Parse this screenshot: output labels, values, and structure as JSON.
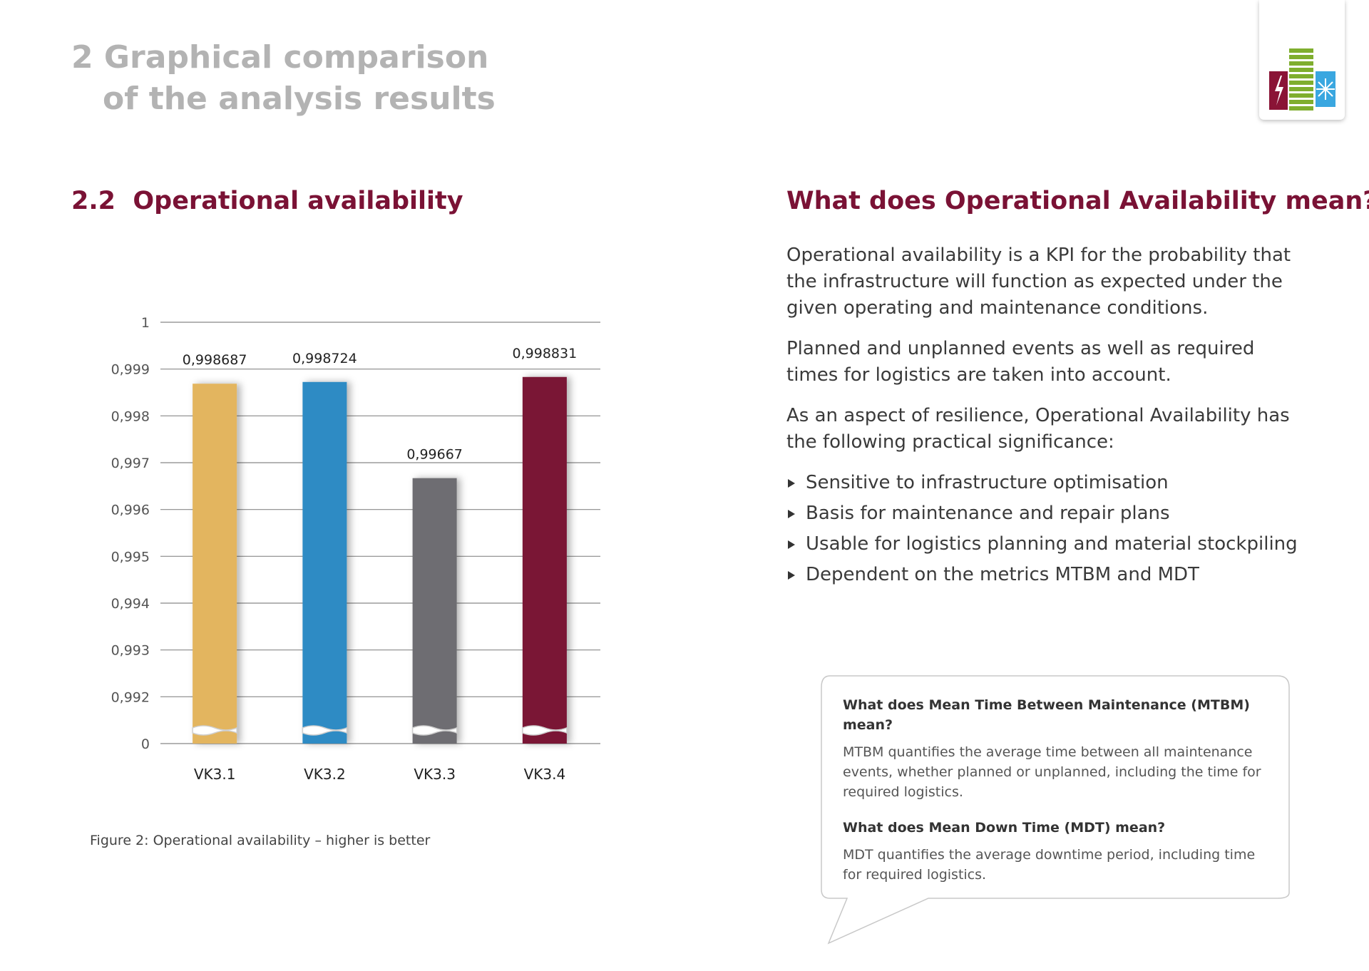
{
  "header": {
    "title_line1": "2 Graphical comparison",
    "title_line2": "of the analysis results"
  },
  "section": {
    "number": "2.2",
    "title": "Operational availability"
  },
  "chart_data": {
    "type": "bar",
    "categories": [
      "VK3.1",
      "VK3.2",
      "VK3.3",
      "VK3.4"
    ],
    "values": [
      0.998687,
      0.998724,
      0.99667,
      0.998831
    ],
    "value_labels": [
      "0,998687",
      "0,998724",
      "0,99667",
      "0,998831"
    ],
    "colors": [
      "#e3b55e",
      "#2e8bc4",
      "#6e6d72",
      "#7a1235"
    ],
    "ylim": [
      0,
      1
    ],
    "axis_break": [
      0,
      0.991
    ],
    "yticks": [
      1,
      {
        "value": 0.999,
        "label": "0,999"
      },
      {
        "value": 0.998,
        "label": "0,998"
      },
      {
        "value": 0.997,
        "label": "0,997"
      },
      {
        "value": 0.996,
        "label": "0,996"
      },
      {
        "value": 0.995,
        "label": "0,995"
      },
      {
        "value": 0.994,
        "label": "0,994"
      },
      {
        "value": 0.993,
        "label": "0,993"
      },
      {
        "value": 0.992,
        "label": "0,992"
      },
      0
    ],
    "grid": true,
    "caption": "Figure 2: Operational availability – higher is better"
  },
  "explanation": {
    "heading": "What does Operational Availability mean?",
    "paragraphs": [
      "Operational availability is a KPI for the probability that the infrastructure will function as expected under the given operating and maintenance conditions.",
      "Planned and unplanned events as well as required times for logistics are taken into account.",
      "As an aspect of resilience, Operational Availability has the following practical significance:"
    ],
    "bullets": [
      "Sensitive to infrastructure optimisation",
      "Basis for maintenance and repair plans",
      "Usable for logistics planning and material stockpiling",
      "Dependent on the metrics MTBM and MDT"
    ]
  },
  "callout": {
    "items": [
      {
        "question": "What does Mean Time Between Maintenance (MTBM) mean?",
        "answer": "MTBM quantifies the average time between all maintenance events, whether planned or unplanned, including the time for required logistics."
      },
      {
        "question": "What does Mean Down Time (MDT) mean?",
        "answer": "MDT quantifies the average downtime period, including time for required logistics."
      }
    ]
  }
}
